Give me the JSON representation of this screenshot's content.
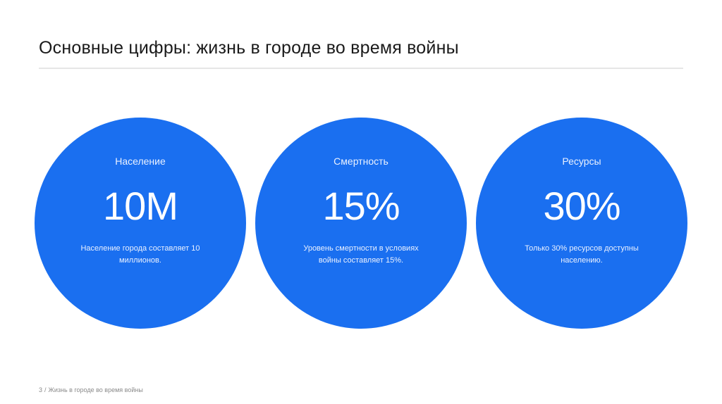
{
  "title": "Основные цифры: жизнь в городе во время войны",
  "colors": {
    "accent": "#1a6ff0",
    "rule": "#e6e6e6"
  },
  "stats": [
    {
      "label": "Население",
      "value": "10M",
      "description": "Население города составляет 10 миллионов."
    },
    {
      "label": "Смертность",
      "value": "15%",
      "description": "Уровень смертности в условиях войны составляет 15%."
    },
    {
      "label": "Ресурсы",
      "value": "30%",
      "description": "Только 30% ресурсов доступны населению."
    }
  ],
  "footer": {
    "page_number": "3",
    "separator": "/",
    "text": "Жизнь в городе во время войны"
  }
}
